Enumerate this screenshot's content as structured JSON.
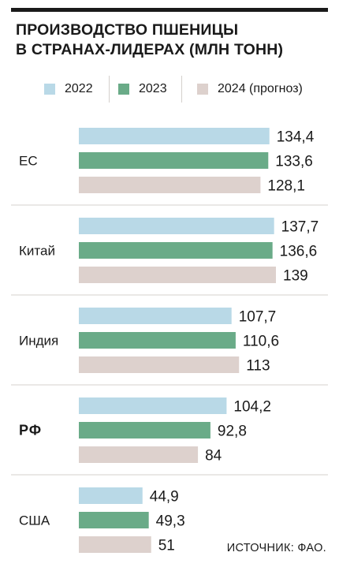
{
  "title_lines": [
    "ПРОИЗВОДСТВО ПШЕНИЦЫ",
    "В СТРАНАХ-ЛИДЕРАХ (МЛН ТОНН)"
  ],
  "source": "ИСТОЧНИК: ФАО.",
  "colors": {
    "2022": "#b9d9e7",
    "2023": "#6aab88",
    "2024": "#ddd1cd",
    "divider": "#d4d0cc",
    "text": "#1a1a1a"
  },
  "chart_data": {
    "type": "bar",
    "orientation": "horizontal",
    "title": "ПРОИЗВОДСТВО ПШЕНИЦЫ В СТРАНАХ-ЛИДЕРАХ (МЛН ТОНН)",
    "categories": [
      "ЕС",
      "Китай",
      "Индия",
      "РФ",
      "США"
    ],
    "highlight_category": "РФ",
    "series": [
      {
        "name": "2022",
        "color": "#b9d9e7",
        "values": [
          134.4,
          137.7,
          107.7,
          104.2,
          44.9
        ],
        "labels": [
          "134,4",
          "137,7",
          "107,7",
          "104,2",
          "44,9"
        ]
      },
      {
        "name": "2023",
        "color": "#6aab88",
        "values": [
          133.6,
          136.6,
          110.6,
          92.8,
          49.3
        ],
        "labels": [
          "133,6",
          "136,6",
          "110,6",
          "92,8",
          "49,3"
        ]
      },
      {
        "name": "2024 (прогноз)",
        "color": "#ddd1cd",
        "values": [
          128.1,
          139,
          113,
          84,
          51
        ],
        "labels": [
          "128,1",
          "139",
          "113",
          "84",
          "51"
        ]
      }
    ],
    "legend_placement": "top",
    "grid": false,
    "axes_visible": false,
    "xlim": [
      0,
      139
    ]
  }
}
